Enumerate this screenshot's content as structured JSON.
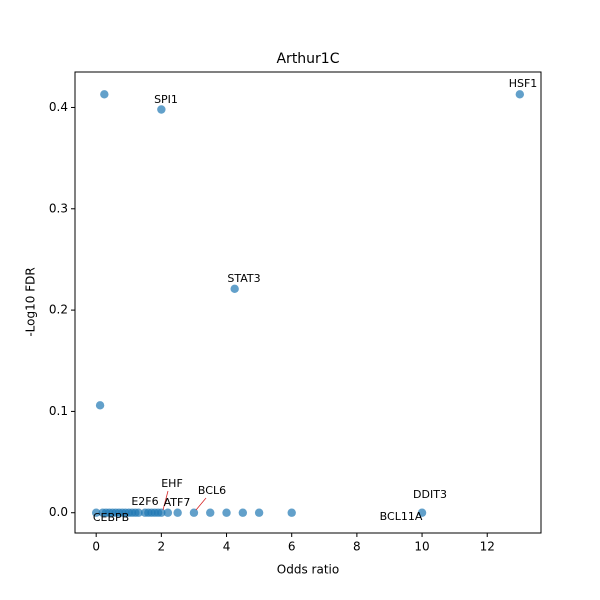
{
  "chart_data": {
    "type": "scatter",
    "title": "Arthur1C",
    "x_label": "Odds ratio",
    "y_label": "-Log10 FDR",
    "color": "#1f77b4",
    "x": [
      0.25,
      2,
      13,
      4.25,
      0.12,
      0,
      0.2,
      0.3,
      0.4,
      0.5,
      0.6,
      0.7,
      0.8,
      0.9,
      1,
      1.1,
      1.2,
      1.3,
      1.5,
      1.6,
      1.7,
      1.8,
      1.9,
      2,
      2.2,
      2.5,
      3,
      3.5,
      4,
      4.5,
      5,
      6,
      10
    ],
    "y": [
      0.413,
      0.398,
      0.413,
      0.221,
      0.106,
      0,
      0,
      0,
      0,
      0,
      0,
      0,
      0,
      0,
      0,
      0,
      0,
      0,
      0,
      0,
      0,
      0,
      0,
      0,
      0,
      0,
      0,
      0,
      0,
      0,
      0,
      0,
      0
    ],
    "annotations": [
      "SPI1",
      "HSF1",
      "STAT3",
      "EHF",
      "ATF7",
      "E2F6",
      "CEBPB",
      "BCL6",
      "DDIT3",
      "BCL11A"
    ],
    "xlim": [
      -0.65,
      13.65
    ],
    "ylim": [
      -0.02,
      0.435
    ],
    "xticks": [
      0,
      2,
      4,
      6,
      8,
      10,
      12
    ],
    "yticks": [
      {
        "value": 0,
        "label": "0.0"
      },
      0.1,
      0.2,
      0.3,
      0.4
    ]
  }
}
